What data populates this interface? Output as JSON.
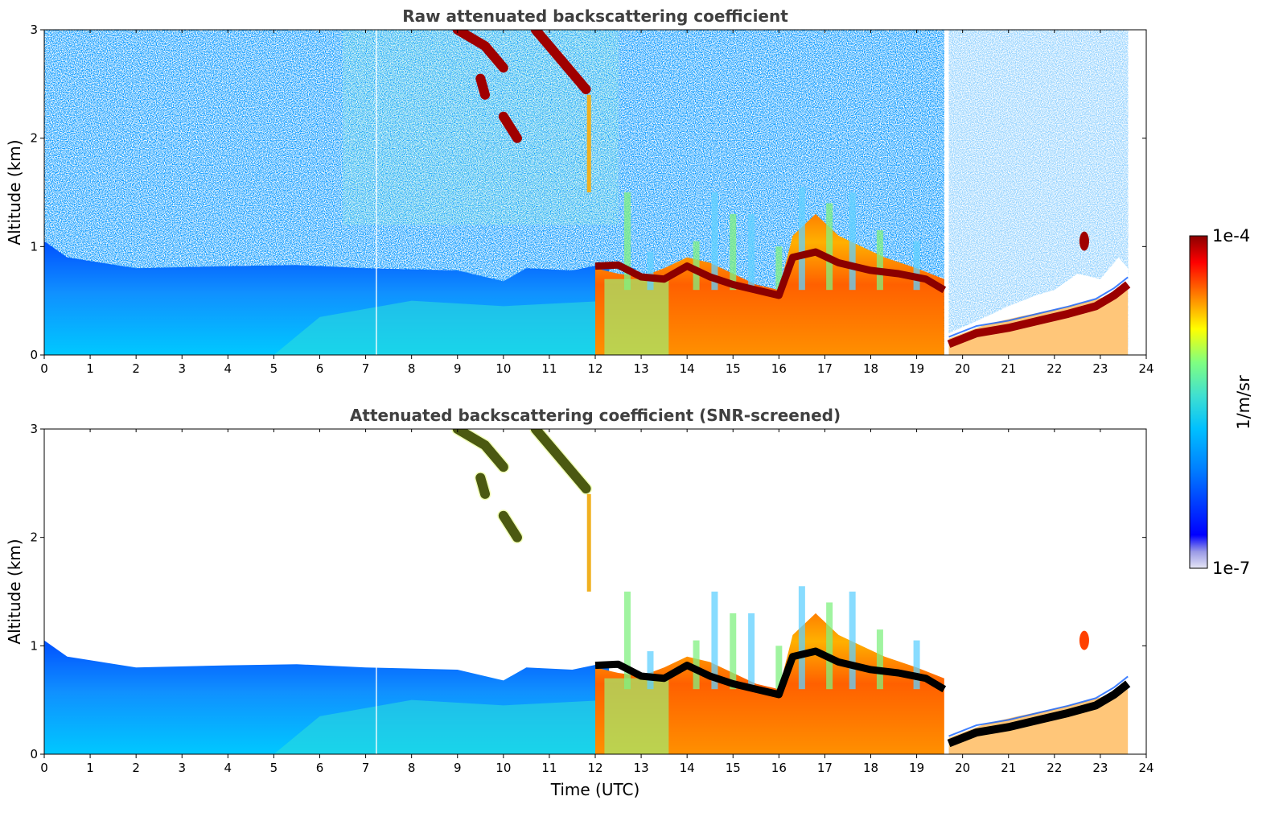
{
  "chart_data": [
    {
      "type": "heatmap",
      "title": "Raw attenuated backscattering coefficient",
      "xlabel": "",
      "ylabel": "Altitude (km)",
      "xlim": [
        0,
        24
      ],
      "ylim": [
        0,
        3
      ],
      "xticks": [
        "0",
        "1",
        "2",
        "3",
        "4",
        "5",
        "6",
        "7",
        "8",
        "9",
        "10",
        "11",
        "12",
        "13",
        "14",
        "15",
        "16",
        "17",
        "18",
        "19",
        "20",
        "21",
        "22",
        "23",
        "24"
      ],
      "yticks": [
        "0",
        "1",
        "2",
        "3"
      ],
      "screened": false,
      "data_end_hour": 23.6,
      "gap_hours": [
        19.6,
        19.7
      ],
      "features": [
        {
          "name": "aerosol boundary layer",
          "x_range": [
            0,
            12
          ],
          "top_km": 0.9
        },
        {
          "name": "cloud base layer",
          "x_range": [
            12,
            19.6
          ],
          "base_km": [
            0.85,
            0.5
          ]
        },
        {
          "name": "elevated ice layer",
          "x_range": [
            9,
            11.9
          ],
          "alt_km": [
            3.0,
            2.4
          ]
        },
        {
          "name": "evening low layer",
          "x_range": [
            19.7,
            23.6
          ],
          "alt_km": [
            0.1,
            0.7
          ]
        }
      ]
    },
    {
      "type": "heatmap",
      "title": "Attenuated backscattering coefficient (SNR-screened)",
      "xlabel": "Time (UTC)",
      "ylabel": "Altitude (km)",
      "xlim": [
        0,
        24
      ],
      "ylim": [
        0,
        3
      ],
      "xticks": [
        "0",
        "1",
        "2",
        "3",
        "4",
        "5",
        "6",
        "7",
        "8",
        "9",
        "10",
        "11",
        "12",
        "13",
        "14",
        "15",
        "16",
        "17",
        "18",
        "19",
        "20",
        "21",
        "22",
        "23",
        "24"
      ],
      "yticks": [
        "0",
        "1",
        "2",
        "3"
      ],
      "screened": true,
      "data_end_hour": 23.6
    }
  ],
  "colorbar": {
    "label": "1/m/sr",
    "max_label": "1e-4",
    "min_label": "1e-7",
    "colors": [
      "#e6e6f5",
      "#9999e6",
      "#0000ff",
      "#0080ff",
      "#00c0ff",
      "#40e0d0",
      "#80ff80",
      "#ffff00",
      "#ff8000",
      "#ff0000",
      "#8b0000"
    ]
  }
}
